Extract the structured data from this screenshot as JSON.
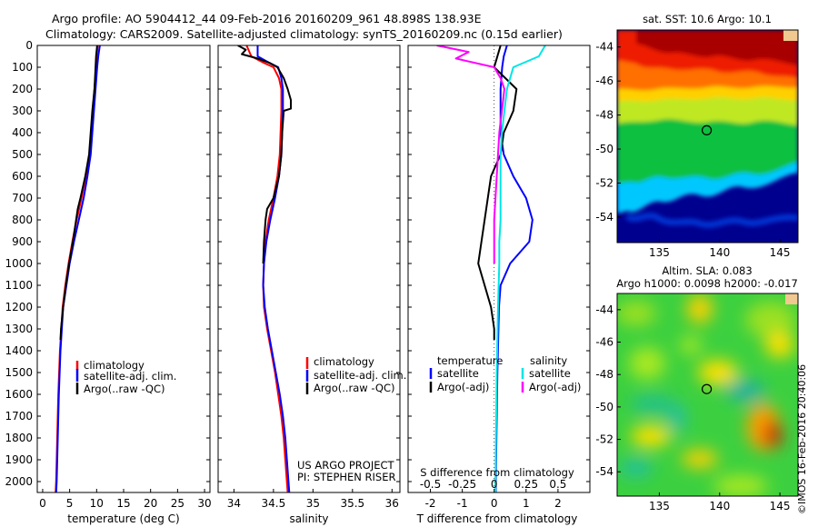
{
  "header": {
    "line1": "Argo profile: AO 5904412_44 09-Feb-2016 20160209_961 48.898S 138.93E",
    "line2": "Climatology: CARS2009. Satellite-adjusted climatology: synTS_20160209.nc (0.15d earlier)"
  },
  "colors": {
    "climatology": "#ff0000",
    "satellite": "#0000ff",
    "argo": "#000000",
    "sal_satellite": "#00e5e5",
    "sal_argo": "#ff00ff"
  },
  "chart_data": [
    {
      "type": "line",
      "id": "temperature",
      "xlabel": "temperature (deg C)",
      "xlim": [
        -1,
        31
      ],
      "xticks": [
        0,
        5,
        10,
        15,
        20,
        25,
        30
      ],
      "ylim": [
        2050,
        0
      ],
      "yticks": [
        0,
        100,
        200,
        300,
        400,
        500,
        600,
        700,
        800,
        900,
        1000,
        1100,
        1200,
        1300,
        1400,
        1500,
        1600,
        1700,
        1800,
        1900,
        2000
      ],
      "legend": [
        "climatology",
        "satellite-adj. clim.",
        "Argo(..raw -QC)"
      ],
      "series": [
        {
          "name": "climatology",
          "depth": [
            0,
            50,
            100,
            200,
            300,
            400,
            500,
            600,
            700,
            800,
            900,
            1000,
            1100,
            1200,
            1400,
            1600,
            1800,
            2000,
            2050
          ],
          "values": [
            10.2,
            10.0,
            9.9,
            9.6,
            9.3,
            9.0,
            8.7,
            8.0,
            7.2,
            6.3,
            5.5,
            4.8,
            4.2,
            3.7,
            3.2,
            2.9,
            2.7,
            2.5,
            2.4
          ]
        },
        {
          "name": "satellite-adj. clim.",
          "depth": [
            0,
            50,
            100,
            200,
            300,
            400,
            500,
            600,
            700,
            800,
            900,
            1000,
            1100,
            1200,
            1400,
            1600,
            1800,
            2000,
            2050
          ],
          "values": [
            10.6,
            10.3,
            10.1,
            9.8,
            9.5,
            9.2,
            8.9,
            8.3,
            7.6,
            6.7,
            5.8,
            5.0,
            4.4,
            3.8,
            3.3,
            3.0,
            2.8,
            2.6,
            2.5
          ]
        },
        {
          "name": "Argo(..raw -QC)",
          "depth": [
            0,
            50,
            100,
            200,
            300,
            400,
            500,
            600,
            700,
            750,
            800,
            900,
            1000,
            1100,
            1200,
            1300,
            1350
          ],
          "values": [
            10.1,
            9.9,
            9.8,
            9.6,
            9.2,
            8.9,
            8.6,
            7.9,
            7.0,
            6.5,
            6.2,
            5.6,
            4.9,
            4.3,
            3.8,
            3.4,
            3.3
          ]
        }
      ]
    },
    {
      "type": "line",
      "id": "salinity",
      "xlabel": "salinity",
      "xlim": [
        33.8,
        36.1
      ],
      "xticks": [
        34,
        34.5,
        35,
        35.5,
        36
      ],
      "ylim": [
        2050,
        0
      ],
      "legend": [
        "climatology",
        "satellite-adj. clim.",
        "Argo(..raw -QC)"
      ],
      "series": [
        {
          "name": "climatology",
          "depth": [
            0,
            50,
            80,
            100,
            150,
            200,
            300,
            400,
            500,
            600,
            700,
            800,
            900,
            1000,
            1100,
            1200,
            1300,
            1400,
            1500,
            1600,
            1700,
            1800,
            1900,
            2000,
            2050
          ],
          "values": [
            34.16,
            34.22,
            34.38,
            34.5,
            34.57,
            34.6,
            34.6,
            34.59,
            34.58,
            34.55,
            34.5,
            34.44,
            34.4,
            34.38,
            34.37,
            34.38,
            34.42,
            34.47,
            34.52,
            34.56,
            34.6,
            34.63,
            34.65,
            34.67,
            34.68
          ]
        },
        {
          "name": "satellite-adj. clim.",
          "depth": [
            0,
            50,
            80,
            100,
            150,
            200,
            300,
            400,
            500,
            600,
            700,
            800,
            900,
            1000,
            1100,
            1200,
            1300,
            1400,
            1500,
            1600,
            1700,
            1800,
            1900,
            2000,
            2050
          ],
          "values": [
            34.3,
            34.3,
            34.45,
            34.56,
            34.6,
            34.62,
            34.62,
            34.61,
            34.6,
            34.57,
            34.52,
            34.46,
            34.41,
            34.38,
            34.37,
            34.39,
            34.43,
            34.48,
            34.53,
            34.58,
            34.62,
            34.65,
            34.67,
            34.69,
            34.7
          ]
        },
        {
          "name": "Argo(..raw -QC)",
          "depth": [
            0,
            20,
            40,
            60,
            80,
            100,
            150,
            200,
            250,
            290,
            300,
            400,
            500,
            600,
            700,
            750,
            800,
            850,
            900,
            1000
          ],
          "values": [
            34.05,
            34.15,
            34.1,
            34.3,
            34.45,
            34.55,
            34.63,
            34.68,
            34.72,
            34.72,
            34.63,
            34.61,
            34.6,
            34.57,
            34.5,
            34.42,
            34.4,
            34.39,
            34.38,
            34.37
          ]
        }
      ],
      "annotation": [
        "US ARGO PROJECT",
        "PI: STEPHEN RISER"
      ]
    },
    {
      "type": "line",
      "id": "difference",
      "xlabel": "T difference from climatology",
      "top_axis_label": "S difference from climatology",
      "xlim": [
        -2.7,
        3.0
      ],
      "xticks": [
        -2,
        -1,
        0,
        1,
        2
      ],
      "xticks_top": [
        -0.5,
        -0.25,
        0,
        0.25,
        0.5
      ],
      "ylim": [
        2050,
        0
      ],
      "legend_left_title": "temperature",
      "legend_right_title": "salinity",
      "legend_left": [
        "satellite",
        "Argo(-adj)"
      ],
      "legend_right": [
        "satellite",
        "Argo(-adj)"
      ],
      "series": [
        {
          "name": "temperature satellite",
          "depth": [
            0,
            50,
            100,
            200,
            300,
            400,
            500,
            600,
            700,
            800,
            900,
            1000,
            1100,
            1200,
            1500,
            2000,
            2050
          ],
          "values": [
            0.4,
            0.3,
            0.25,
            0.2,
            0.2,
            0.2,
            0.3,
            0.6,
            1.0,
            1.2,
            1.1,
            0.5,
            0.2,
            0.15,
            0.1,
            0.05,
            0.05
          ]
        },
        {
          "name": "temperature Argo(-adj)",
          "depth": [
            0,
            50,
            100,
            200,
            300,
            400,
            500,
            600,
            700,
            800,
            900,
            1000,
            1100,
            1200,
            1300,
            1350
          ],
          "values": [
            0.2,
            0.1,
            0.0,
            0.7,
            0.6,
            0.3,
            0.2,
            -0.1,
            -0.2,
            -0.3,
            -0.4,
            -0.5,
            -0.3,
            -0.1,
            0.0,
            0.0
          ]
        },
        {
          "name": "salinity satellite",
          "depth": [
            0,
            50,
            100,
            200,
            300,
            400,
            500,
            600,
            700,
            800,
            900,
            1000,
            1200,
            1500,
            2000,
            2050
          ],
          "values": [
            0.4,
            0.35,
            0.15,
            0.1,
            0.08,
            0.06,
            0.05,
            0.05,
            0.05,
            0.05,
            0.04,
            0.04,
            0.03,
            0.02,
            0.01,
            0.01
          ]
        },
        {
          "name": "salinity Argo(-adj)",
          "depth": [
            0,
            30,
            60,
            100,
            150,
            200,
            300,
            400,
            500,
            600,
            700,
            800,
            900,
            1000
          ],
          "values": [
            -0.45,
            -0.2,
            -0.3,
            0.0,
            0.05,
            0.08,
            0.06,
            0.04,
            0.03,
            0.02,
            0.01,
            0.0,
            0.0,
            0.0
          ]
        }
      ]
    },
    {
      "type": "heatmap",
      "id": "sst_map",
      "title": "sat. SST: 10.6 Argo: 10.1",
      "xlim": [
        131.5,
        146.5
      ],
      "ylim": [
        -55.5,
        -43
      ],
      "xticks": [
        135,
        140,
        145
      ],
      "yticks": [
        -44,
        -46,
        -48,
        -50,
        -52,
        -54
      ],
      "marker": {
        "lon": 138.93,
        "lat": -48.898
      }
    },
    {
      "type": "heatmap",
      "id": "sla_map",
      "title_line1": "Altim. SLA: 0.083",
      "title_line2": "Argo h1000: 0.0098 h2000: -0.017",
      "xlim": [
        131.5,
        146.5
      ],
      "ylim": [
        -55.5,
        -43
      ],
      "xticks": [
        135,
        140,
        145
      ],
      "yticks": [
        -44,
        -46,
        -48,
        -50,
        -52,
        -54
      ],
      "marker": {
        "lon": 138.93,
        "lat": -48.898
      }
    }
  ],
  "stamp": "©IMOS 16-Feb-2016 20:40:06"
}
